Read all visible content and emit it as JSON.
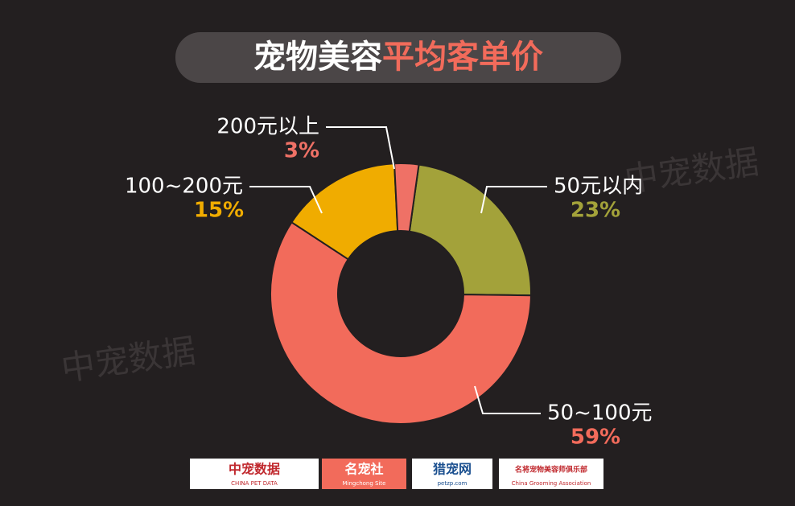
{
  "chart_data": {
    "type": "donut",
    "title": [
      "宠物美容",
      "平均客单价"
    ],
    "categories": [
      "50元以内",
      "50~100元",
      "100~200元",
      "200元以上"
    ],
    "values": [
      23,
      59,
      15,
      3
    ],
    "value_labels": [
      "23%",
      "59%",
      "15%",
      "3%"
    ],
    "colors": [
      "#a3a23a",
      "#f26b5b",
      "#f0ac00",
      "#ef7166"
    ],
    "watermark": "中宠数据"
  },
  "logos": [
    {
      "name": "中宠数据",
      "sub": "CHINA PET DATA"
    },
    {
      "name": "名宠社",
      "sub": "Mingchong Site"
    },
    {
      "name": "猎宠网",
      "sub": "petzp.com"
    },
    {
      "name": "名将宠物美容师俱乐部",
      "sub": "China Grooming Association"
    }
  ]
}
